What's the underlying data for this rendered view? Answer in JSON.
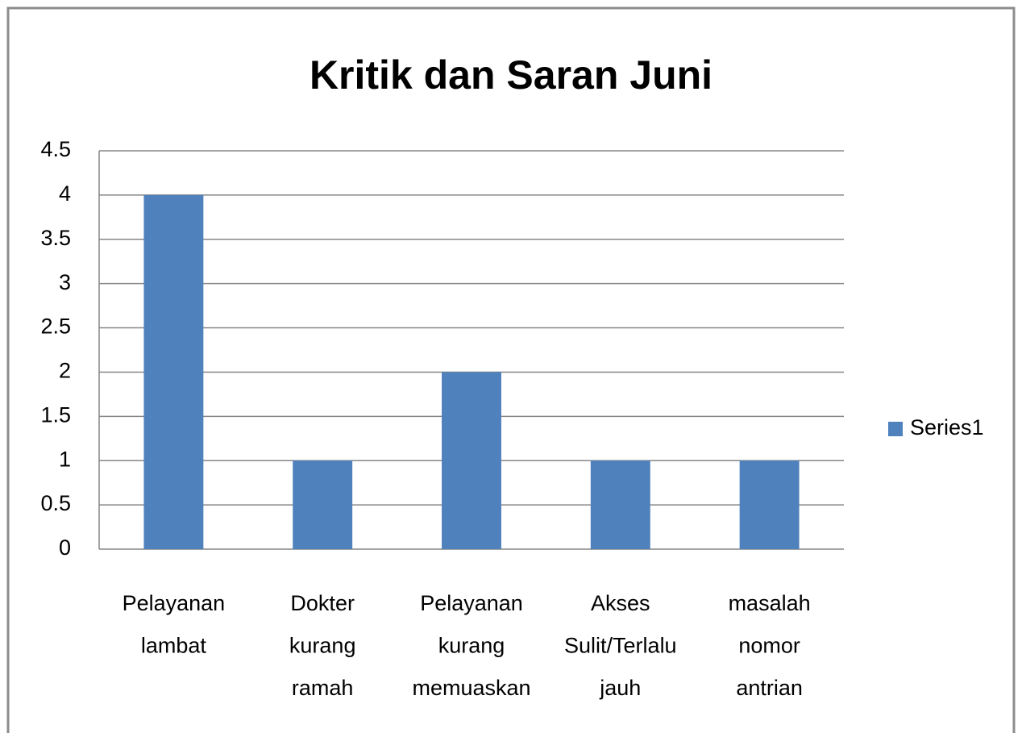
{
  "chart_data": {
    "type": "bar",
    "title": "Kritik dan Saran Juni",
    "categories": [
      "Pelayanan lambat",
      "Dokter kurang ramah",
      "Pelayanan kurang memuaskan",
      "Akses Sulit/Terlalu jauh",
      "masalah nomor antrian"
    ],
    "series": [
      {
        "name": "Series1",
        "color": "#4f81bd",
        "values": [
          4,
          1,
          2,
          1,
          1
        ]
      }
    ],
    "ylim": [
      0,
      4.5
    ],
    "yticks": [
      0,
      0.5,
      1,
      1.5,
      2,
      2.5,
      3,
      3.5,
      4,
      4.5
    ],
    "grid": true,
    "legend": "right"
  }
}
